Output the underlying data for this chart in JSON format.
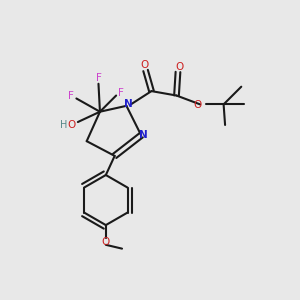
{
  "bg_color": "#e8e8e8",
  "bond_color": "#1a1a1a",
  "N_color": "#2020cc",
  "O_color": "#cc2020",
  "F_color": "#cc44cc",
  "H_color": "#558888",
  "figsize": [
    3.0,
    3.0
  ],
  "dpi": 100,
  "xlim": [
    0,
    10
  ],
  "ylim": [
    0,
    10
  ],
  "lw": 1.5,
  "fs": 7.5
}
